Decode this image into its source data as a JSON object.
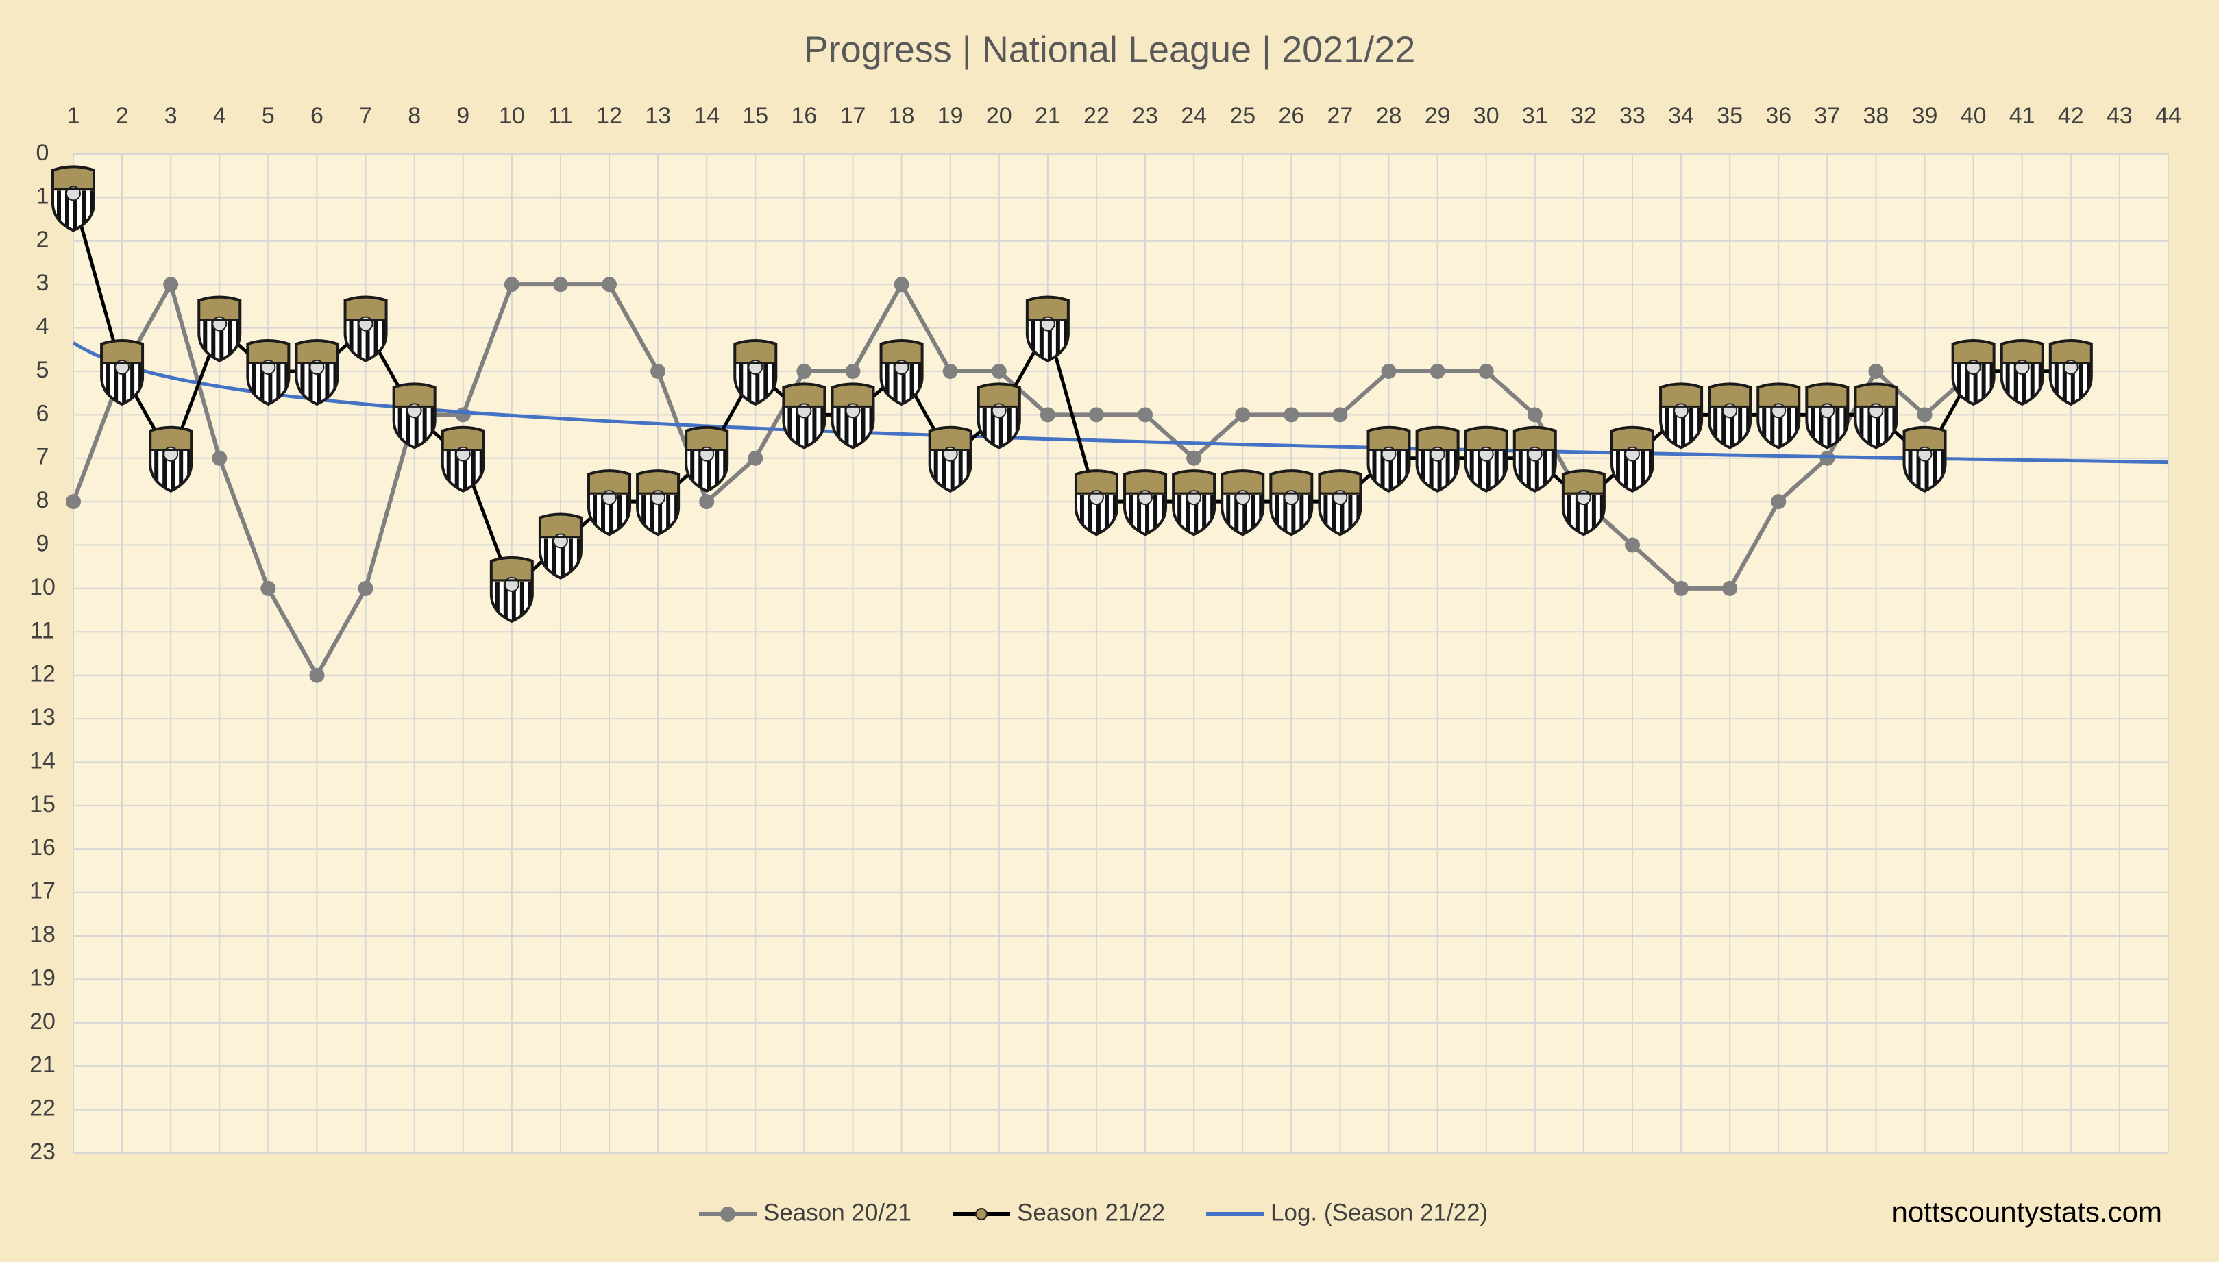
{
  "chart_data": {
    "type": "line",
    "title": "Progress | National League | 2021/22",
    "x": [
      1,
      2,
      3,
      4,
      5,
      6,
      7,
      8,
      9,
      10,
      11,
      12,
      13,
      14,
      15,
      16,
      17,
      18,
      19,
      20,
      21,
      22,
      23,
      24,
      25,
      26,
      27,
      28,
      29,
      30,
      31,
      32,
      33,
      34,
      35,
      36,
      37,
      38,
      39,
      40,
      41,
      42
    ],
    "series": [
      {
        "name": "Season 20/21",
        "color": "#808080",
        "values": [
          8,
          5,
          3,
          7,
          10,
          12,
          10,
          6,
          6,
          3,
          3,
          3,
          5,
          8,
          7,
          5,
          5,
          3,
          5,
          5,
          6,
          6,
          6,
          7,
          6,
          6,
          6,
          5,
          5,
          5,
          6,
          8,
          9,
          10,
          10,
          8,
          7,
          5,
          6,
          5,
          5,
          5
        ]
      },
      {
        "name": "Season 21/22",
        "color": "#000000",
        "values": [
          1,
          5,
          7,
          4,
          5,
          5,
          4,
          6,
          7,
          10,
          9,
          8,
          8,
          7,
          5,
          6,
          6,
          5,
          7,
          6,
          4,
          8,
          8,
          8,
          8,
          8,
          8,
          7,
          7,
          7,
          7,
          8,
          7,
          6,
          6,
          6,
          6,
          6,
          7,
          5,
          5,
          5
        ]
      }
    ],
    "trendline": {
      "name": "Log. (Season 21/22)",
      "color": "#4472c4",
      "fit": "log"
    },
    "xlim": [
      1,
      44
    ],
    "xticks": [
      1,
      2,
      3,
      4,
      5,
      6,
      7,
      8,
      9,
      10,
      11,
      12,
      13,
      14,
      15,
      16,
      17,
      18,
      19,
      20,
      21,
      22,
      23,
      24,
      25,
      26,
      27,
      28,
      29,
      30,
      31,
      32,
      33,
      34,
      35,
      36,
      37,
      38,
      39,
      40,
      41,
      42,
      43,
      44
    ],
    "ylim": [
      0,
      23
    ],
    "yticks": [
      0,
      1,
      2,
      3,
      4,
      5,
      6,
      7,
      8,
      9,
      10,
      11,
      12,
      13,
      14,
      15,
      16,
      17,
      18,
      19,
      20,
      21,
      22,
      23
    ],
    "y_inverted": true,
    "grid": true,
    "legend": "bottom",
    "source": "nottscountystats.com"
  }
}
